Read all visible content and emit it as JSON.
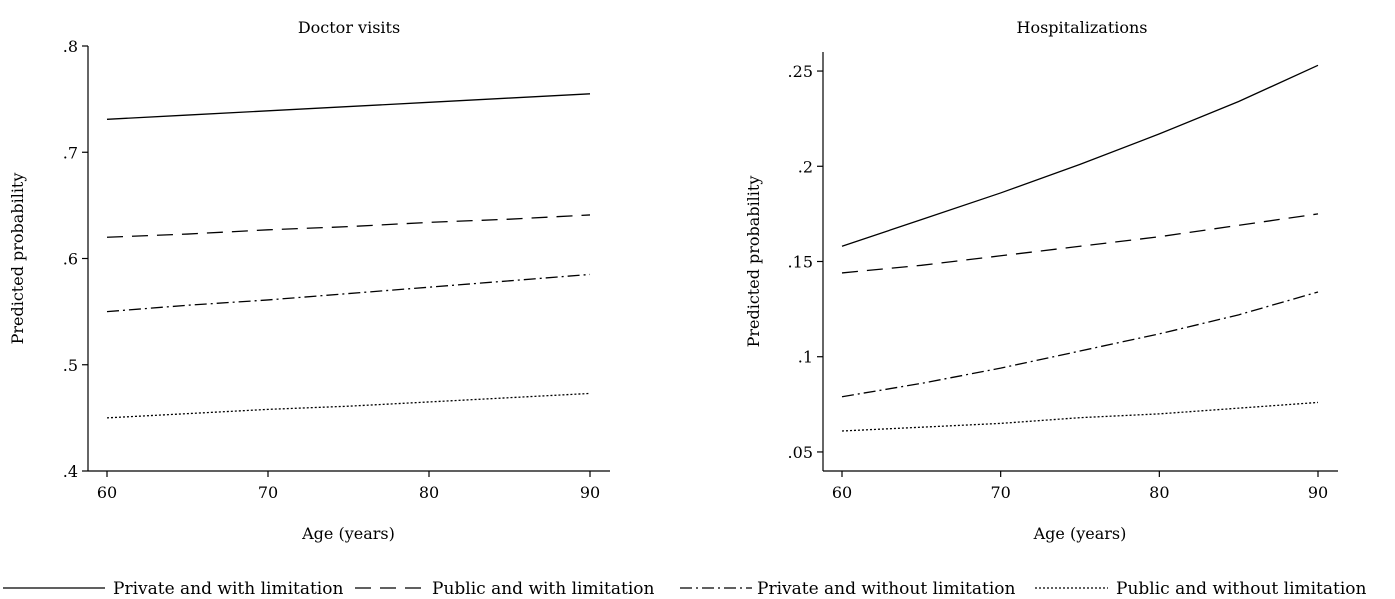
{
  "chart_data": [
    {
      "type": "line",
      "title": "Doctor visits",
      "xlabel": "Age (years)",
      "ylabel": "Predicted probability",
      "xlim": [
        60,
        90
      ],
      "ylim": [
        0.4,
        0.8
      ],
      "xticks": [
        60,
        70,
        80,
        90
      ],
      "xtick_labels": [
        "60",
        "70",
        "80",
        "90"
      ],
      "yticks": [
        0.4,
        0.5,
        0.6,
        0.7,
        0.8
      ],
      "ytick_labels": [
        ".4",
        ".5",
        ".6",
        ".7",
        ".8"
      ],
      "grid": false,
      "x": [
        60,
        65,
        70,
        75,
        80,
        85,
        90
      ],
      "series": [
        {
          "name": "Private and with limitation",
          "style": "solid",
          "values": [
            0.731,
            0.735,
            0.739,
            0.743,
            0.747,
            0.751,
            0.755
          ]
        },
        {
          "name": "Public and with limitation",
          "style": "dashed",
          "values": [
            0.62,
            0.623,
            0.627,
            0.63,
            0.634,
            0.637,
            0.641
          ]
        },
        {
          "name": "Private and without limitation",
          "style": "dashdot",
          "values": [
            0.55,
            0.556,
            0.561,
            0.567,
            0.573,
            0.579,
            0.585
          ]
        },
        {
          "name": "Public and without limitation",
          "style": "dotted",
          "values": [
            0.45,
            0.454,
            0.458,
            0.461,
            0.465,
            0.469,
            0.473
          ]
        }
      ]
    },
    {
      "type": "line",
      "title": "Hospitalizations",
      "xlabel": "Age (years)",
      "ylabel": "Predicted probability",
      "xlim": [
        60,
        90
      ],
      "ylim": [
        0.04,
        0.26
      ],
      "xticks": [
        60,
        70,
        80,
        90
      ],
      "xtick_labels": [
        "60",
        "70",
        "80",
        "90"
      ],
      "yticks": [
        0.05,
        0.1,
        0.15,
        0.2,
        0.25
      ],
      "ytick_labels": [
        ".05",
        ".1",
        ".15",
        ".2",
        ".25"
      ],
      "grid": false,
      "x": [
        60,
        65,
        70,
        75,
        80,
        85,
        90
      ],
      "series": [
        {
          "name": "Private and with limitation",
          "style": "solid",
          "values": [
            0.158,
            0.172,
            0.186,
            0.201,
            0.217,
            0.234,
            0.253
          ]
        },
        {
          "name": "Public and with limitation",
          "style": "dashed",
          "values": [
            0.144,
            0.148,
            0.153,
            0.158,
            0.163,
            0.169,
            0.175
          ]
        },
        {
          "name": "Private and without limitation",
          "style": "dashdot",
          "values": [
            0.079,
            0.086,
            0.094,
            0.103,
            0.112,
            0.122,
            0.134
          ]
        },
        {
          "name": "Public and without limitation",
          "style": "dotted",
          "values": [
            0.061,
            0.063,
            0.065,
            0.068,
            0.07,
            0.073,
            0.076
          ]
        }
      ]
    }
  ],
  "legend": {
    "position": "bottom",
    "items": [
      {
        "label": "Private and with limitation",
        "style": "solid"
      },
      {
        "label": "Public and with limitation",
        "style": "dashed"
      },
      {
        "label": "Private and without limitation",
        "style": "dashdot"
      },
      {
        "label": "Public and without limitation",
        "style": "dotted"
      }
    ]
  }
}
